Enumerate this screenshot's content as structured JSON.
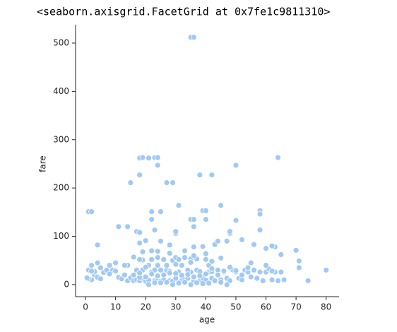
{
  "output_text": "<seaborn.axisgrid.FacetGrid at 0x7fe1c9811310>",
  "chart_data": {
    "type": "scatter",
    "x_label": "age",
    "y_label": "fare",
    "color": "#a1c9f4",
    "xlim": [
      -3.3,
      84.3
    ],
    "ylim": [
      -25,
      538
    ],
    "xticks": [
      0,
      10,
      20,
      30,
      40,
      50,
      60,
      70,
      80
    ],
    "yticks": [
      0,
      100,
      200,
      300,
      400,
      500
    ],
    "x": [
      35,
      36,
      1,
      2,
      4,
      14,
      11,
      15,
      18,
      18,
      19,
      21,
      23,
      24,
      24,
      27,
      29,
      31,
      35,
      36,
      36,
      38,
      39,
      40,
      42,
      40,
      45,
      50,
      50,
      58,
      58,
      58,
      64,
      70,
      71,
      71,
      74,
      80,
      65,
      63,
      62,
      60,
      56,
      52,
      48,
      48,
      43,
      47,
      44,
      30,
      30,
      28,
      22,
      22,
      23,
      24,
      25,
      25,
      17,
      18,
      18,
      16,
      19,
      20,
      14,
      1,
      2,
      3,
      4,
      5,
      6,
      8,
      9,
      1,
      2,
      3,
      4,
      5,
      7,
      8,
      10,
      11,
      12,
      13,
      14,
      15,
      16,
      17,
      18,
      19,
      20,
      21,
      22,
      23,
      24,
      25,
      26,
      27,
      28,
      29,
      30,
      31,
      32,
      33,
      34,
      35,
      36,
      37,
      38,
      39,
      40,
      41,
      42,
      43,
      44,
      45,
      46,
      47,
      48,
      49,
      50,
      51,
      52,
      53,
      54,
      55,
      56,
      57,
      58,
      59,
      60,
      61,
      62,
      63,
      64,
      65,
      66,
      18,
      19,
      20,
      21,
      22,
      23,
      24,
      25,
      26,
      27,
      28,
      29,
      30,
      31,
      32,
      33,
      34,
      35,
      36,
      37,
      38,
      39,
      40,
      41,
      42,
      16,
      17,
      18,
      20,
      22,
      24,
      26,
      28,
      30,
      32,
      34,
      36,
      38,
      40,
      42,
      44,
      46,
      48,
      50,
      52,
      54,
      21,
      23,
      25,
      27,
      29,
      31,
      33,
      35,
      37,
      39,
      41,
      45,
      47,
      0.5,
      2,
      45,
      60,
      33,
      28,
      22,
      19,
      40,
      36,
      55,
      62,
      10,
      13,
      18,
      24,
      30,
      35,
      42
    ],
    "y": [
      512,
      512,
      151,
      151,
      82,
      120,
      120,
      211,
      227,
      262,
      263,
      262,
      263,
      263,
      247,
      211,
      211,
      164,
      135,
      135,
      120,
      227,
      153,
      153,
      227,
      135,
      164,
      247,
      133,
      153,
      146,
      113,
      263,
      71,
      49,
      35,
      8,
      30,
      62,
      78,
      80,
      75,
      83,
      93,
      106,
      110,
      83,
      90,
      90,
      106,
      110,
      82,
      151,
      135,
      113,
      69,
      90,
      151,
      110,
      108,
      86,
      57,
      51,
      91,
      40,
      30,
      10,
      20,
      15,
      35,
      25,
      40,
      30,
      12,
      40,
      27,
      45,
      12,
      30,
      22,
      28,
      15,
      12,
      20,
      8,
      14,
      8,
      10,
      8,
      13,
      7,
      9,
      26,
      8,
      13,
      7,
      10,
      30,
      8,
      7,
      13,
      26,
      8,
      10,
      13,
      26,
      8,
      30,
      7,
      13,
      9,
      26,
      13,
      8,
      30,
      10,
      26,
      13,
      8,
      30,
      26,
      13,
      10,
      30,
      26,
      16,
      30,
      13,
      26,
      8,
      26,
      32,
      10,
      26,
      8,
      26,
      10,
      52,
      30,
      16,
      40,
      52,
      30,
      56,
      30,
      52,
      40,
      27,
      50,
      56,
      52,
      40,
      56,
      30,
      53,
      78,
      53,
      27,
      79,
      52,
      40,
      27,
      20,
      30,
      15,
      36,
      22,
      18,
      20,
      24,
      23,
      19,
      21,
      16,
      18,
      22,
      33,
      20,
      28,
      36,
      29,
      20,
      35,
      0,
      4,
      4,
      5,
      0,
      3,
      5,
      0,
      4,
      2,
      3,
      5,
      0,
      14,
      28,
      55,
      40,
      70,
      65,
      70,
      68,
      64,
      60,
      45,
      28,
      45,
      40,
      24,
      40,
      42,
      46,
      48
    ]
  }
}
